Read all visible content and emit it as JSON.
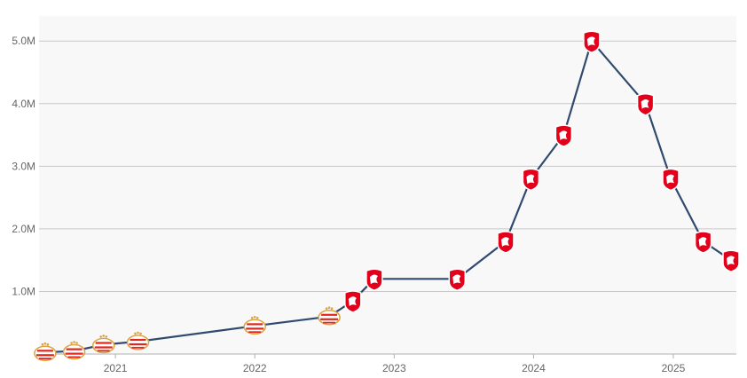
{
  "chart_data": {
    "type": "line",
    "title": "",
    "xlabel": "",
    "ylabel": "",
    "x_ticks": [
      "2021",
      "2022",
      "2023",
      "2024",
      "2025"
    ],
    "y_ticks": [
      "1.0M",
      "2.0M",
      "3.0M",
      "4.0M",
      "5.0M"
    ],
    "ylim": [
      0,
      5400000
    ],
    "xlim": [
      "2020-06-15",
      "2025-06-15"
    ],
    "grid": true,
    "legend": "none",
    "colors": {
      "line": "#2f4a6e",
      "plot_bg": "#f8f8f9",
      "grid": "#c8c8c8",
      "psv_red": "#e2261c",
      "psv_gold": "#d9a441",
      "twente_red": "#e3001b"
    },
    "series": [
      {
        "points": [
          {
            "date": "2020-07-01",
            "value": 25000,
            "club": "PSV"
          },
          {
            "date": "2020-09-15",
            "value": 50000,
            "club": "PSV"
          },
          {
            "date": "2020-12-01",
            "value": 150000,
            "club": "PSV"
          },
          {
            "date": "2021-03-01",
            "value": 200000,
            "club": "PSV"
          },
          {
            "date": "2022-01-01",
            "value": 450000,
            "club": "PSV"
          },
          {
            "date": "2022-07-15",
            "value": 600000,
            "club": "PSV"
          },
          {
            "date": "2022-09-15",
            "value": 850000,
            "club": "FC Twente"
          },
          {
            "date": "2022-11-10",
            "value": 1200000,
            "club": "FC Twente"
          },
          {
            "date": "2023-06-15",
            "value": 1200000,
            "club": "FC Twente"
          },
          {
            "date": "2023-10-20",
            "value": 1800000,
            "club": "FC Twente"
          },
          {
            "date": "2023-12-25",
            "value": 2800000,
            "club": "FC Twente"
          },
          {
            "date": "2024-03-20",
            "value": 3500000,
            "club": "FC Twente"
          },
          {
            "date": "2024-06-01",
            "value": 5000000,
            "club": "FC Twente"
          },
          {
            "date": "2024-10-20",
            "value": 4000000,
            "club": "FC Twente"
          },
          {
            "date": "2024-12-25",
            "value": 2800000,
            "club": "FC Twente"
          },
          {
            "date": "2025-03-20",
            "value": 1800000,
            "club": "FC Twente"
          },
          {
            "date": "2025-06-01",
            "value": 1500000,
            "club": "FC Twente"
          }
        ]
      }
    ],
    "marker_icons": {
      "PSV": "psv-crest-icon",
      "FC Twente": "fc-twente-crest-icon"
    }
  }
}
